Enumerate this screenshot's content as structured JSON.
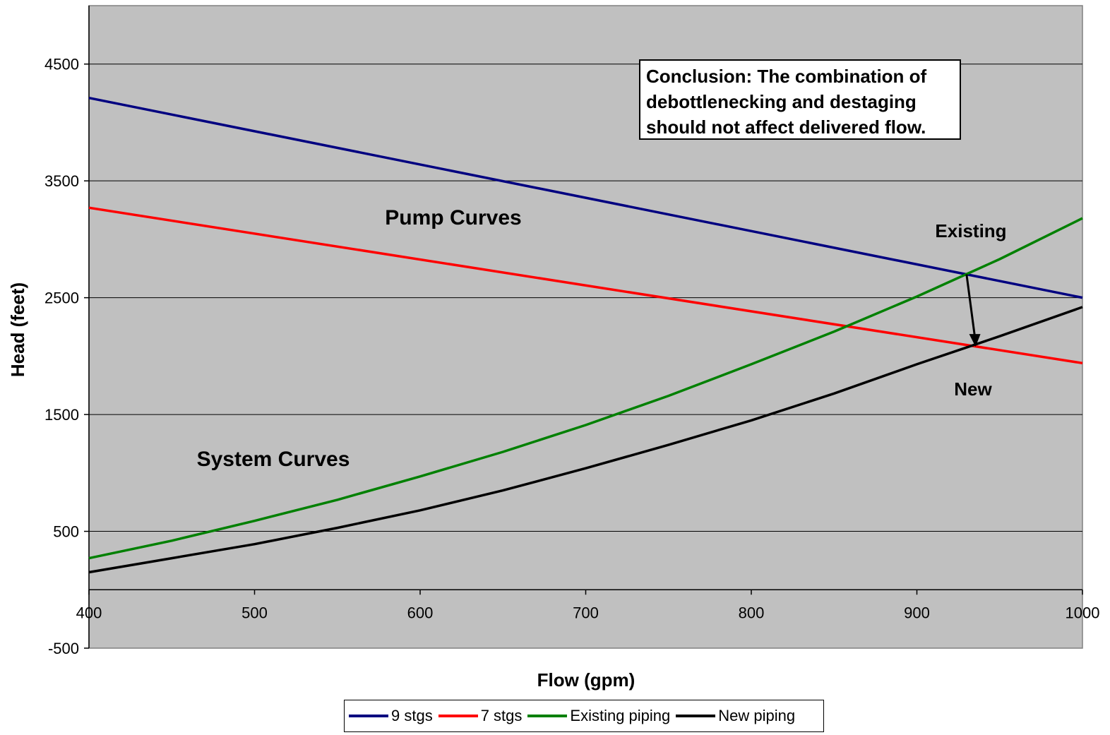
{
  "chart_data": {
    "type": "line",
    "title": "",
    "xlabel": "Flow (gpm)",
    "ylabel": "Head (feet)",
    "xlim": [
      400,
      1000
    ],
    "ylim": [
      -500,
      5000
    ],
    "x_ticks": [
      400,
      500,
      600,
      700,
      800,
      900,
      1000
    ],
    "y_ticks": [
      -500,
      500,
      1500,
      2500,
      3500,
      4500
    ],
    "grid": "horizontal",
    "background": "#c0c0c0",
    "legend_position": "bottom",
    "series": [
      {
        "name": "9 stgs",
        "color": "#000080",
        "x": [
          400,
          1000
        ],
        "y": [
          4210,
          2500
        ]
      },
      {
        "name": "7 stgs",
        "color": "#ff0000",
        "x": [
          400,
          1000
        ],
        "y": [
          3270,
          1940
        ]
      },
      {
        "name": "Existing piping",
        "color": "#008000",
        "x": [
          400,
          450,
          500,
          550,
          600,
          650,
          700,
          750,
          800,
          850,
          900,
          950,
          1000
        ],
        "y": [
          270,
          420,
          590,
          770,
          970,
          1180,
          1410,
          1660,
          1930,
          2210,
          2510,
          2830,
          3180
        ]
      },
      {
        "name": "New piping",
        "color": "#000000",
        "x": [
          400,
          450,
          500,
          550,
          600,
          650,
          700,
          750,
          800,
          850,
          900,
          950,
          1000
        ],
        "y": [
          150,
          270,
          390,
          530,
          680,
          850,
          1040,
          1240,
          1450,
          1680,
          1930,
          2170,
          2420
        ]
      }
    ],
    "annotations": {
      "conclusion_lines": [
        "Conclusion:  The combination of",
        "debottlenecking and destaging",
        "should not affect delivered flow."
      ],
      "pump_curves": "Pump Curves",
      "system_curves": "System Curves",
      "existing": "Existing",
      "new": "New"
    },
    "arrow": {
      "from": {
        "x": 930,
        "y": 2700
      },
      "to": {
        "x": 935,
        "y": 2080
      },
      "color": "#000000"
    }
  }
}
